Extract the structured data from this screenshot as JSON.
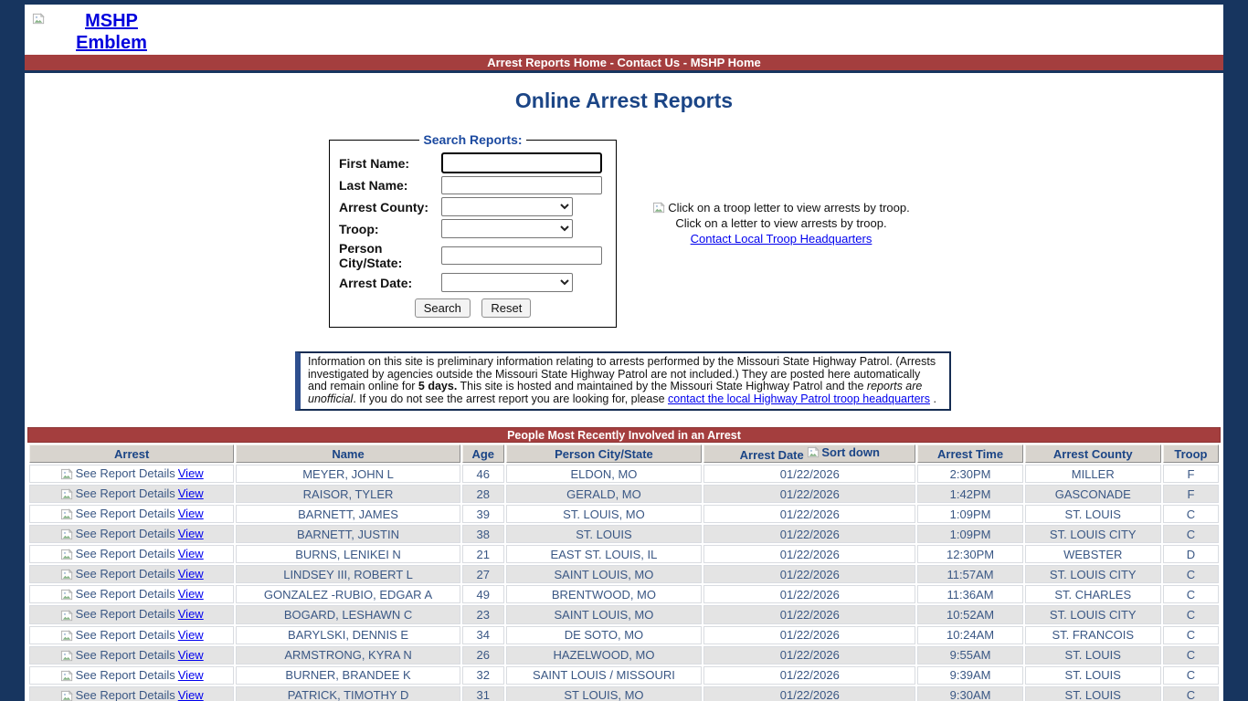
{
  "colors": {
    "page_background": "#17355f",
    "accent_red": "#a43e3e",
    "heading_navy": "#1b4586",
    "data_navy": "#3a5784",
    "link_blue": "#0000ee"
  },
  "header": {
    "emblem_alt": "MSHP Emblem",
    "nav": {
      "links": [
        "Arrest Reports Home",
        "Contact Us",
        "MSHP Home"
      ],
      "separator": " - "
    },
    "title": "Online Arrest Reports"
  },
  "search": {
    "legend": "Search Reports:",
    "fields": [
      {
        "label": "First Name:"
      },
      {
        "label": "Last Name:"
      },
      {
        "label": "Arrest County:"
      },
      {
        "label": "Troop:"
      },
      {
        "label": "Person City/State:"
      },
      {
        "label": "Arrest Date:"
      }
    ],
    "buttons": {
      "search": "Search",
      "reset": "Reset"
    }
  },
  "troop_panel": {
    "image_alt": "Click on a troop letter to view arrests by troop.",
    "caption": "Click on a letter to view arrests by troop.",
    "link": "Contact Local Troop Headquarters"
  },
  "notice": {
    "part1": "Information on this site is preliminary information relating to arrests performed by the Missouri State Highway Patrol. (Arrests investigated by agencies outside the Missouri State Highway Patrol are not included.) They are posted here automatically and remain online for ",
    "bold": "5 days.",
    "part2": " This site is hosted and maintained by the Missouri State Highway Patrol and the ",
    "italic": "reports are unofficial",
    "part3": ". If you do not see the arrest report you are looking for, please ",
    "link": "contact the local Highway Patrol troop headquarters",
    "part4": " ."
  },
  "results": {
    "banner": "People Most Recently Involved in an Arrest",
    "columns": [
      "Arrest",
      "Name",
      "Age",
      "Person City/State",
      "Arrest Date",
      "Arrest Time",
      "Arrest County",
      "Troop"
    ],
    "sort_label": "Sort down",
    "row_action": {
      "icon_alt": "See Report Details",
      "link_label": "View"
    },
    "partial_row_visible": true,
    "rows": [
      {
        "name": "MEYER, JOHN L",
        "age": "46",
        "city": "ELDON, MO",
        "date": "01/22/2026",
        "time": "2:30PM",
        "county": "MILLER",
        "troop": "F"
      },
      {
        "name": "RAISOR, TYLER",
        "age": "28",
        "city": "GERALD, MO",
        "date": "01/22/2026",
        "time": "1:42PM",
        "county": "GASCONADE",
        "troop": "F"
      },
      {
        "name": "BARNETT, JAMES",
        "age": "39",
        "city": "ST. LOUIS, MO",
        "date": "01/22/2026",
        "time": "1:09PM",
        "county": "ST. LOUIS",
        "troop": "C"
      },
      {
        "name": "BARNETT, JUSTIN",
        "age": "38",
        "city": "ST. LOUIS",
        "date": "01/22/2026",
        "time": "1:09PM",
        "county": "ST. LOUIS CITY",
        "troop": "C"
      },
      {
        "name": "BURNS, LENIKEI N",
        "age": "21",
        "city": "EAST ST. LOUIS, IL",
        "date": "01/22/2026",
        "time": "12:30PM",
        "county": "WEBSTER",
        "troop": "D"
      },
      {
        "name": "LINDSEY III, ROBERT L",
        "age": "27",
        "city": "SAINT LOUIS, MO",
        "date": "01/22/2026",
        "time": "11:57AM",
        "county": "ST. LOUIS CITY",
        "troop": "C"
      },
      {
        "name": "GONZALEZ -RUBIO, EDGAR A",
        "age": "49",
        "city": "BRENTWOOD, MO",
        "date": "01/22/2026",
        "time": "11:36AM",
        "county": "ST. CHARLES",
        "troop": "C"
      },
      {
        "name": "BOGARD, LESHAWN C",
        "age": "23",
        "city": "SAINT LOUIS, MO",
        "date": "01/22/2026",
        "time": "10:52AM",
        "county": "ST. LOUIS CITY",
        "troop": "C"
      },
      {
        "name": "BARYLSKI, DENNIS E",
        "age": "34",
        "city": "DE SOTO, MO",
        "date": "01/22/2026",
        "time": "10:24AM",
        "county": "ST. FRANCOIS",
        "troop": "C"
      },
      {
        "name": "ARMSTRONG, KYRA N",
        "age": "26",
        "city": "HAZELWOOD, MO",
        "date": "01/22/2026",
        "time": "9:55AM",
        "county": "ST. LOUIS",
        "troop": "C"
      },
      {
        "name": "BURNER, BRANDEE K",
        "age": "32",
        "city": "SAINT LOUIS / MISSOURI",
        "date": "01/22/2026",
        "time": "9:39AM",
        "county": "ST. LOUIS",
        "troop": "C"
      },
      {
        "name": "PATRICK, TIMOTHY D",
        "age": "31",
        "city": "ST LOUIS, MO",
        "date": "01/22/2026",
        "time": "9:30AM",
        "county": "ST. LOUIS",
        "troop": "C"
      }
    ]
  }
}
